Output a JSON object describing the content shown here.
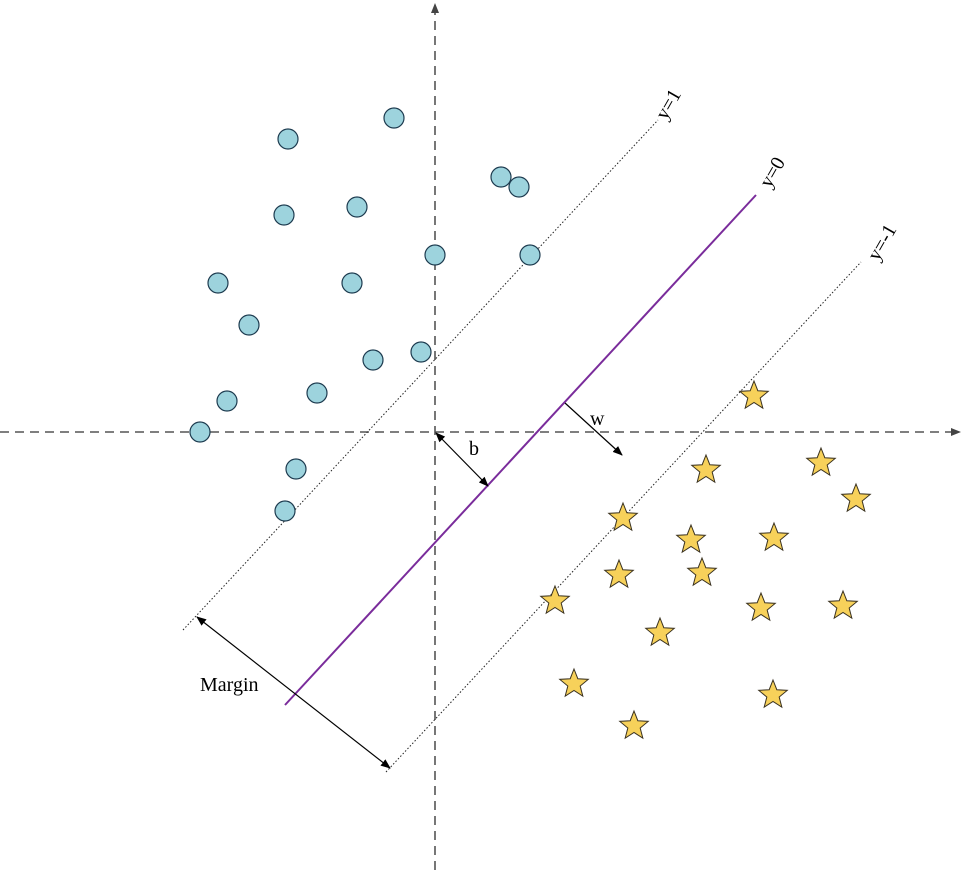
{
  "labels": {
    "y_pos": "y=1",
    "y_zero": "y=0",
    "y_neg": "y=-1",
    "w": "w",
    "b": "b",
    "margin": "Margin"
  },
  "colors": {
    "circle_fill": "#9dd3dd",
    "circle_stroke": "#1e3c50",
    "star_fill": "#f7d15a",
    "star_stroke": "#3a3220",
    "hyperplane": "#7a2c9b",
    "axis": "#555555",
    "margin_line": "#222222",
    "arrow": "#000000"
  },
  "icons": {
    "class_a_marker": "circle-icon",
    "class_b_marker": "star-icon"
  }
}
